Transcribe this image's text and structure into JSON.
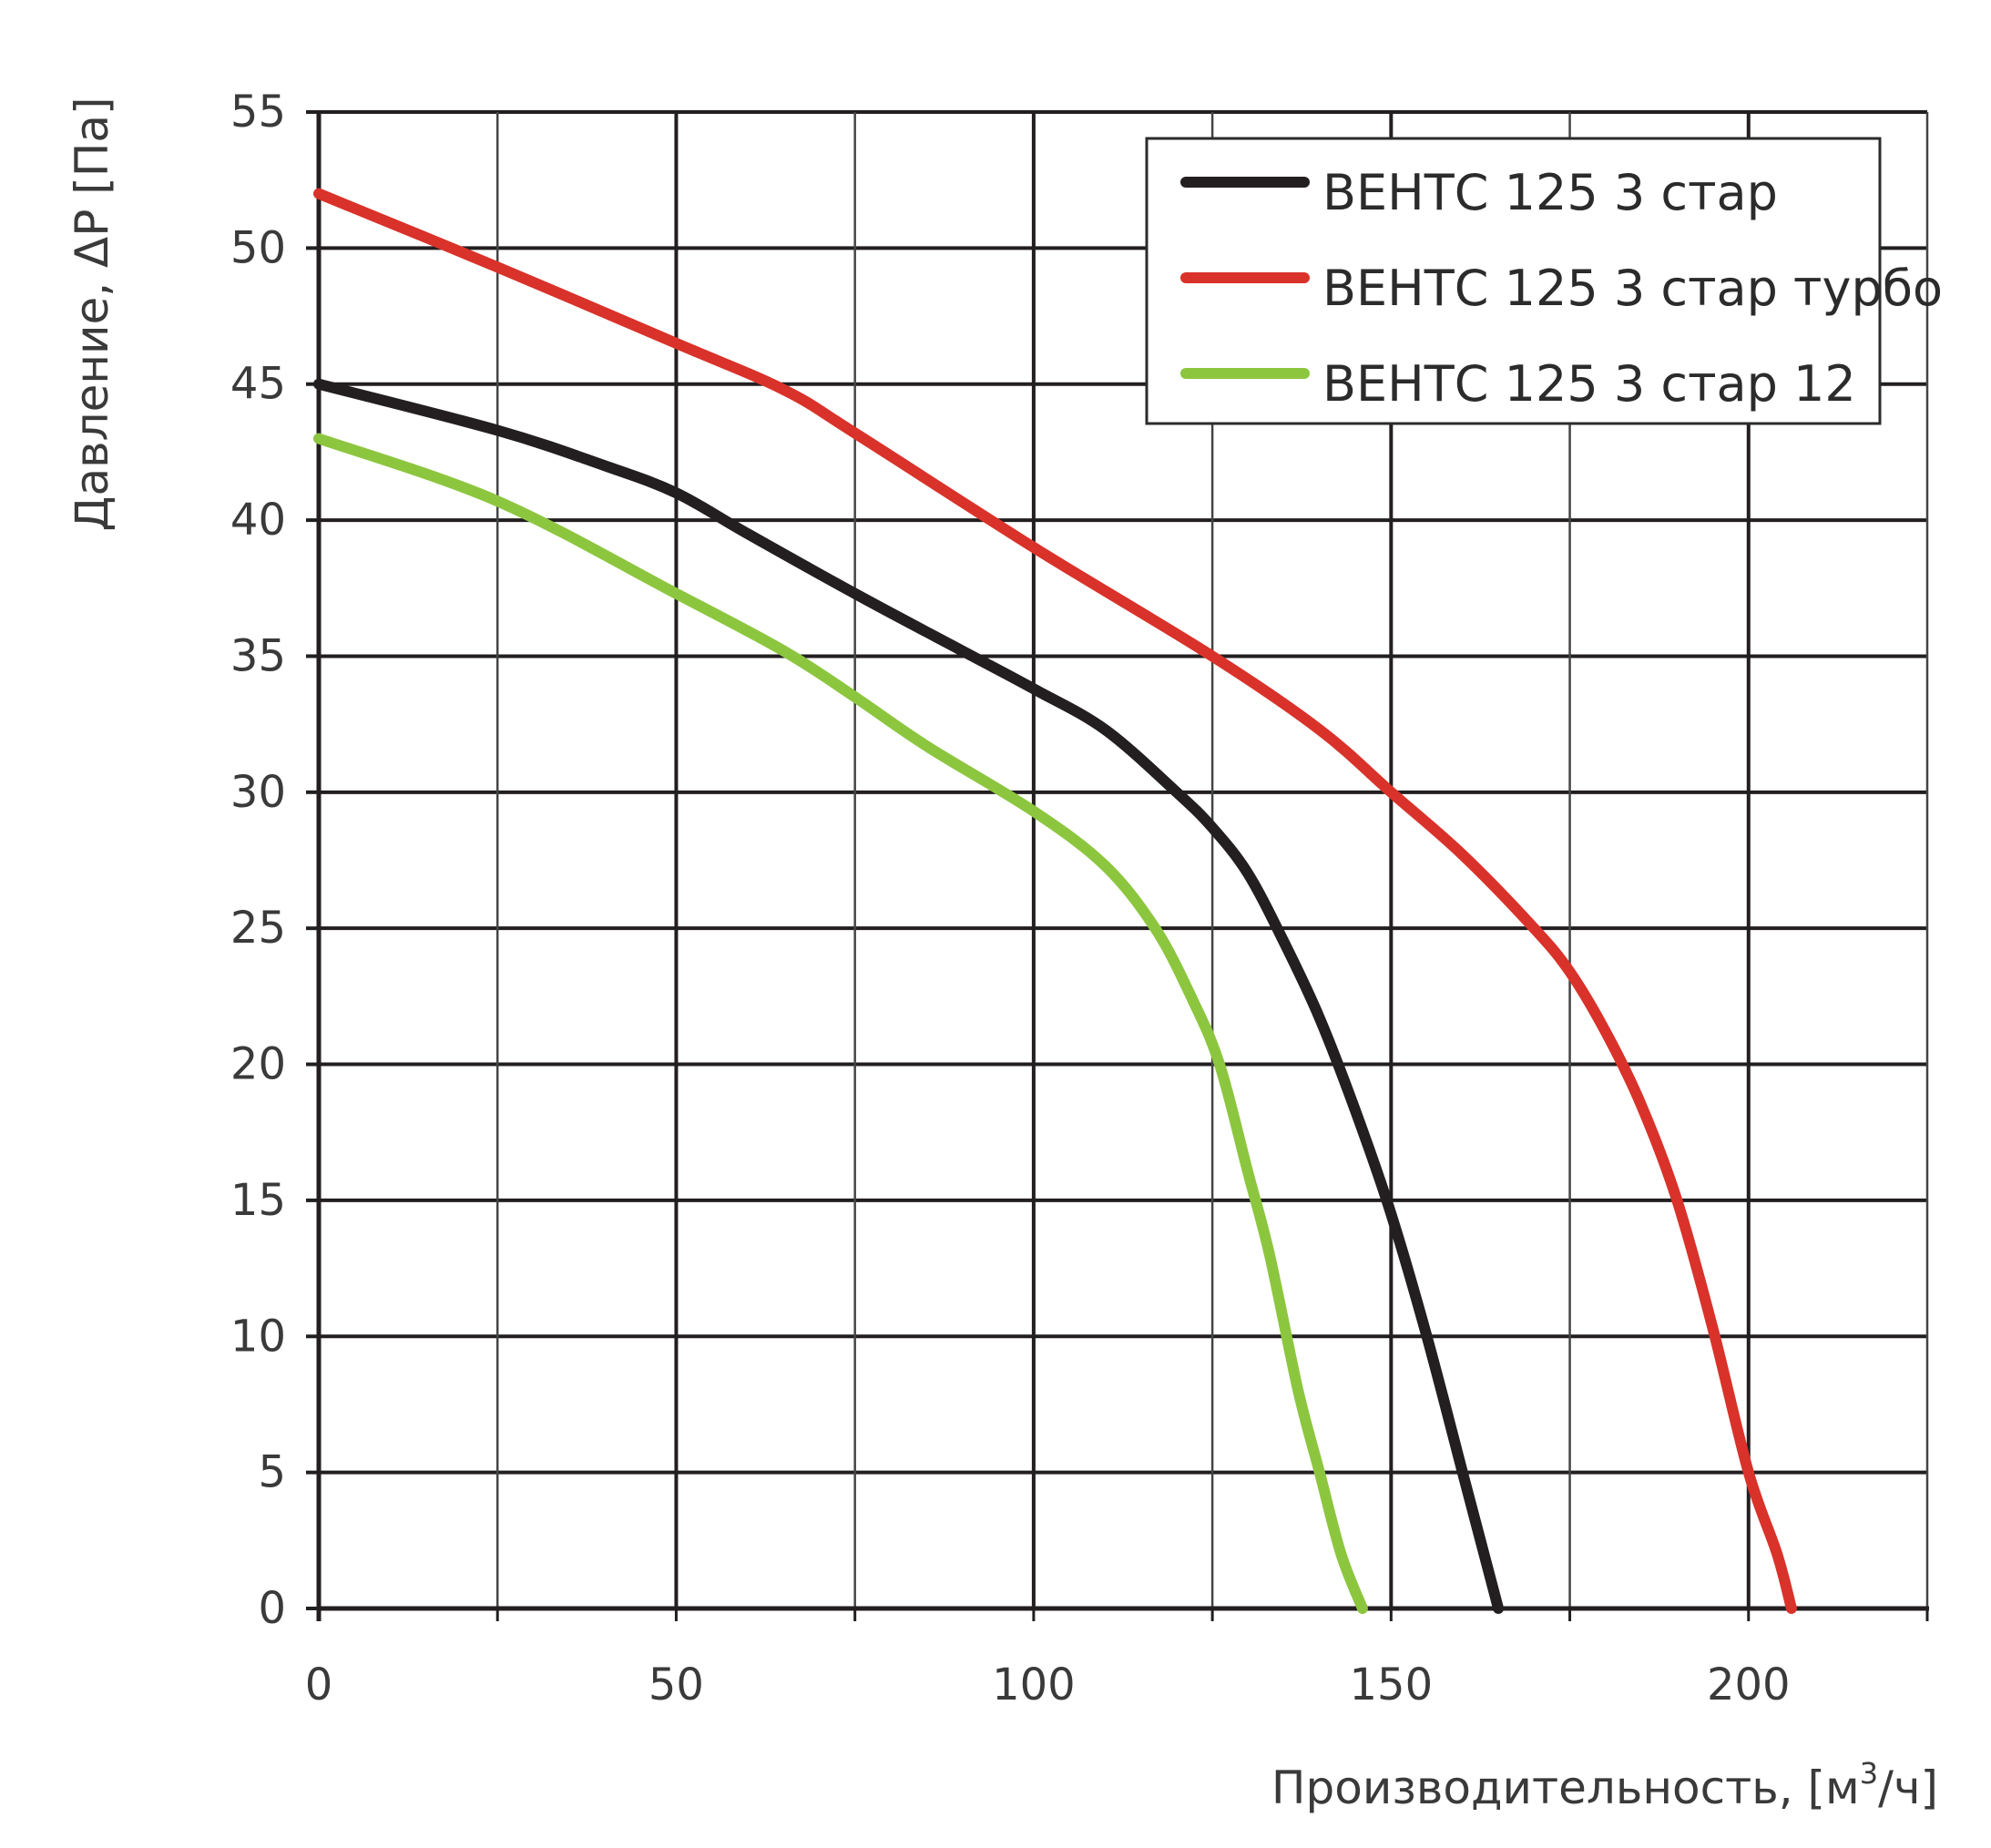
{
  "chart_data": {
    "type": "line",
    "title": "",
    "xlabel": "Производительность, [м",
    "xlabel_sup": "3",
    "xlabel_suffix": "/ч]",
    "ylabel": "Давление, ΔP [Па]",
    "xlim": [
      0,
      225
    ],
    "ylim": [
      0,
      55
    ],
    "x_ticks": [
      0,
      50,
      100,
      150,
      200
    ],
    "y_ticks": [
      0,
      5,
      10,
      15,
      20,
      25,
      30,
      35,
      40,
      45,
      50,
      55
    ],
    "x_gridlines": [
      0,
      25,
      50,
      75,
      100,
      125,
      150,
      175,
      200,
      225
    ],
    "grid": true,
    "legend_position": "top-right",
    "series": [
      {
        "name": "ВЕНТС 125 3 стар",
        "color": "#231f20",
        "points": [
          [
            0,
            45
          ],
          [
            25,
            43.3
          ],
          [
            40,
            42
          ],
          [
            50,
            41
          ],
          [
            60,
            39.5
          ],
          [
            75,
            37.3
          ],
          [
            90,
            35.2
          ],
          [
            100,
            33.8
          ],
          [
            110,
            32.3
          ],
          [
            120,
            30
          ],
          [
            125,
            28.7
          ],
          [
            130,
            27
          ],
          [
            135,
            24.5
          ],
          [
            140,
            21.7
          ],
          [
            145,
            18.3
          ],
          [
            150,
            14.5
          ],
          [
            155,
            10
          ],
          [
            160,
            5
          ],
          [
            163,
            2
          ],
          [
            165,
            0
          ]
        ]
      },
      {
        "name": "ВЕНТС 125 3 стар турбо",
        "color": "#d9322a",
        "points": [
          [
            0,
            52
          ],
          [
            25,
            49.3
          ],
          [
            50,
            46.5
          ],
          [
            65,
            44.8
          ],
          [
            75,
            43.2
          ],
          [
            100,
            39
          ],
          [
            125,
            35
          ],
          [
            140,
            32.3
          ],
          [
            150,
            30
          ],
          [
            160,
            27.7
          ],
          [
            170,
            25
          ],
          [
            175,
            23.4
          ],
          [
            180,
            21.2
          ],
          [
            185,
            18.5
          ],
          [
            190,
            15
          ],
          [
            195,
            10.3
          ],
          [
            200,
            5
          ],
          [
            204,
            2
          ],
          [
            206,
            0
          ]
        ]
      },
      {
        "name": "ВЕНТС 125 3 стар 12",
        "color": "#8cc63f",
        "points": [
          [
            0,
            43
          ],
          [
            25,
            40.7
          ],
          [
            50,
            37.3
          ],
          [
            65,
            35.2
          ],
          [
            75,
            33.5
          ],
          [
            85,
            31.7
          ],
          [
            100,
            29.3
          ],
          [
            110,
            27.3
          ],
          [
            117,
            25
          ],
          [
            122,
            22.5
          ],
          [
            126,
            20
          ],
          [
            130,
            16
          ],
          [
            133,
            13
          ],
          [
            137,
            8
          ],
          [
            140,
            5
          ],
          [
            143,
            2
          ],
          [
            146,
            0
          ]
        ]
      }
    ]
  }
}
